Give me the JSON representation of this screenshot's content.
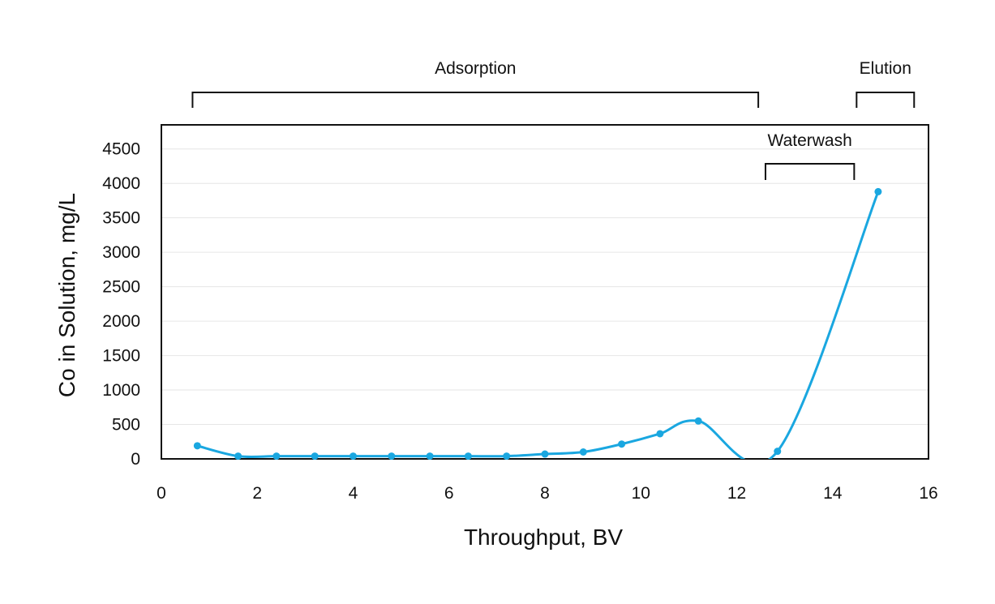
{
  "chart_data": {
    "type": "line",
    "title": "",
    "xlabel": "Throughput, BV",
    "ylabel": "Co in Solution, mg/L",
    "xlim": [
      0,
      16
    ],
    "ylim": [
      0,
      4850
    ],
    "x_ticks": [
      0,
      2,
      4,
      6,
      8,
      10,
      12,
      14,
      16
    ],
    "y_ticks": [
      0,
      500,
      1000,
      1500,
      2000,
      2500,
      3000,
      3500,
      4000,
      4500
    ],
    "grid": true,
    "colors": {
      "series": "#1aa7e0",
      "axis": "#111111",
      "grid": "#e6e6e6"
    },
    "series": [
      {
        "name": "Co in Solution",
        "points": [
          {
            "x": 0.75,
            "y": 190
          },
          {
            "x": 1.6,
            "y": 40
          },
          {
            "x": 2.4,
            "y": 40
          },
          {
            "x": 3.2,
            "y": 40
          },
          {
            "x": 4.0,
            "y": 40
          },
          {
            "x": 4.8,
            "y": 40
          },
          {
            "x": 5.6,
            "y": 40
          },
          {
            "x": 6.4,
            "y": 40
          },
          {
            "x": 7.2,
            "y": 40
          },
          {
            "x": 8.0,
            "y": 70
          },
          {
            "x": 8.8,
            "y": 100
          },
          {
            "x": 9.6,
            "y": 215
          },
          {
            "x": 10.4,
            "y": 365
          },
          {
            "x": 11.2,
            "y": 550
          },
          {
            "x": 12.85,
            "y": 110
          },
          {
            "x": 14.95,
            "y": 3880
          }
        ]
      }
    ],
    "phases": [
      {
        "label": "Adsorption",
        "start": 0.65,
        "end": 12.45,
        "row": "above-plot"
      },
      {
        "label": "Waterwash",
        "start": 12.6,
        "end": 14.45,
        "row": "inside-plot"
      },
      {
        "label": "Elution",
        "start": 14.5,
        "end": 15.7,
        "row": "above-plot"
      }
    ]
  }
}
